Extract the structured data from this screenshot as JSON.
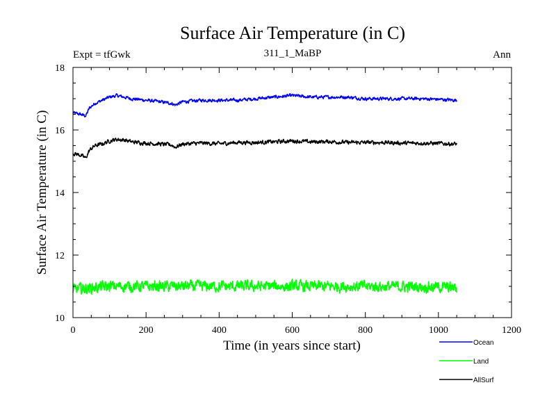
{
  "chart_data": {
    "type": "line",
    "title": "Surface Air Temperature (in C)",
    "subtitle": "311_1_MaBP",
    "left_label": "Expt = tfGwk",
    "right_label": "Ann",
    "xlabel": "Time (in years since start)",
    "ylabel": "Surface Air Temperature (in C)",
    "xlim": [
      0,
      1200
    ],
    "ylim": [
      10,
      18
    ],
    "x_ticks": [
      0,
      200,
      400,
      600,
      800,
      1000,
      1200
    ],
    "y_ticks": [
      10,
      12,
      14,
      16,
      18
    ],
    "x_range": [
      0,
      1050
    ],
    "series": [
      {
        "name": "Ocean",
        "color": "#0000ff",
        "keypoints": [
          [
            0,
            16.55
          ],
          [
            20,
            16.5
          ],
          [
            35,
            16.45
          ],
          [
            45,
            16.7
          ],
          [
            60,
            16.85
          ],
          [
            80,
            16.95
          ],
          [
            100,
            17.05
          ],
          [
            120,
            17.1
          ],
          [
            140,
            17.05
          ],
          [
            160,
            17.0
          ],
          [
            200,
            16.95
          ],
          [
            240,
            16.9
          ],
          [
            270,
            16.85
          ],
          [
            280,
            16.8
          ],
          [
            300,
            16.9
          ],
          [
            350,
            16.95
          ],
          [
            400,
            16.95
          ],
          [
            450,
            16.95
          ],
          [
            500,
            17.0
          ],
          [
            550,
            17.05
          ],
          [
            600,
            17.1
          ],
          [
            650,
            17.05
          ],
          [
            700,
            17.05
          ],
          [
            750,
            17.05
          ],
          [
            800,
            17.0
          ],
          [
            850,
            17.0
          ],
          [
            900,
            17.0
          ],
          [
            950,
            17.0
          ],
          [
            1000,
            16.98
          ],
          [
            1050,
            16.95
          ]
        ],
        "noise": 0.05
      },
      {
        "name": "AllSurf",
        "color": "#000000",
        "keypoints": [
          [
            0,
            15.25
          ],
          [
            20,
            15.2
          ],
          [
            35,
            15.1
          ],
          [
            45,
            15.35
          ],
          [
            60,
            15.5
          ],
          [
            80,
            15.55
          ],
          [
            100,
            15.65
          ],
          [
            120,
            15.7
          ],
          [
            140,
            15.68
          ],
          [
            160,
            15.62
          ],
          [
            200,
            15.58
          ],
          [
            240,
            15.55
          ],
          [
            270,
            15.52
          ],
          [
            280,
            15.45
          ],
          [
            300,
            15.55
          ],
          [
            350,
            15.58
          ],
          [
            400,
            15.56
          ],
          [
            450,
            15.6
          ],
          [
            500,
            15.6
          ],
          [
            550,
            15.62
          ],
          [
            600,
            15.65
          ],
          [
            650,
            15.62
          ],
          [
            700,
            15.63
          ],
          [
            750,
            15.6
          ],
          [
            800,
            15.6
          ],
          [
            850,
            15.6
          ],
          [
            900,
            15.58
          ],
          [
            950,
            15.58
          ],
          [
            1000,
            15.57
          ],
          [
            1050,
            15.55
          ]
        ],
        "noise": 0.06
      },
      {
        "name": "Land",
        "color": "#00ff00",
        "keypoints": [
          [
            0,
            10.9
          ],
          [
            50,
            10.95
          ],
          [
            100,
            11.0
          ],
          [
            200,
            11.0
          ],
          [
            400,
            11.0
          ],
          [
            600,
            11.0
          ],
          [
            800,
            11.0
          ],
          [
            1000,
            10.98
          ],
          [
            1050,
            10.95
          ]
        ],
        "noise": 0.17
      }
    ],
    "legend": [
      {
        "name": "Ocean",
        "color": "#0000ff"
      },
      {
        "name": "Land",
        "color": "#00ff00"
      },
      {
        "name": "AllSurf",
        "color": "#000000"
      }
    ]
  }
}
